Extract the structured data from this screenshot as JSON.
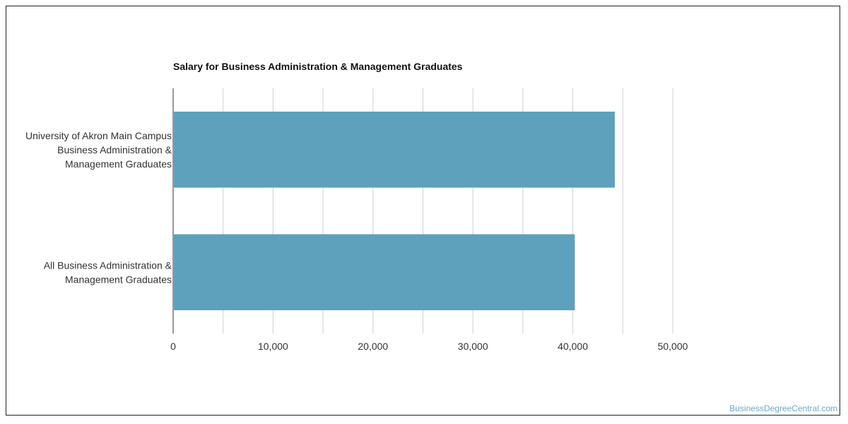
{
  "chart_data": {
    "type": "bar",
    "orientation": "horizontal",
    "title": "Salary for Business Administration & Management Graduates",
    "categories": [
      [
        "University of Akron Main Campus",
        "Business Administration &",
        "Management Graduates"
      ],
      [
        "All Business Administration &",
        "Management Graduates"
      ]
    ],
    "values": [
      44200,
      40200
    ],
    "xlim": [
      0,
      50000
    ],
    "xticks": [
      0,
      10000,
      20000,
      30000,
      40000,
      50000
    ],
    "xtick_labels": [
      "0",
      "10,000",
      "20,000",
      "30,000",
      "40,000",
      "50,000"
    ],
    "xlabel": "",
    "ylabel": "",
    "grid": true,
    "bar_color": "#5ea1bd",
    "grid_color": "#d0d0d0"
  },
  "watermark": {
    "text": "BusinessDegreeCentral.com",
    "color": "#6aa9c8"
  }
}
